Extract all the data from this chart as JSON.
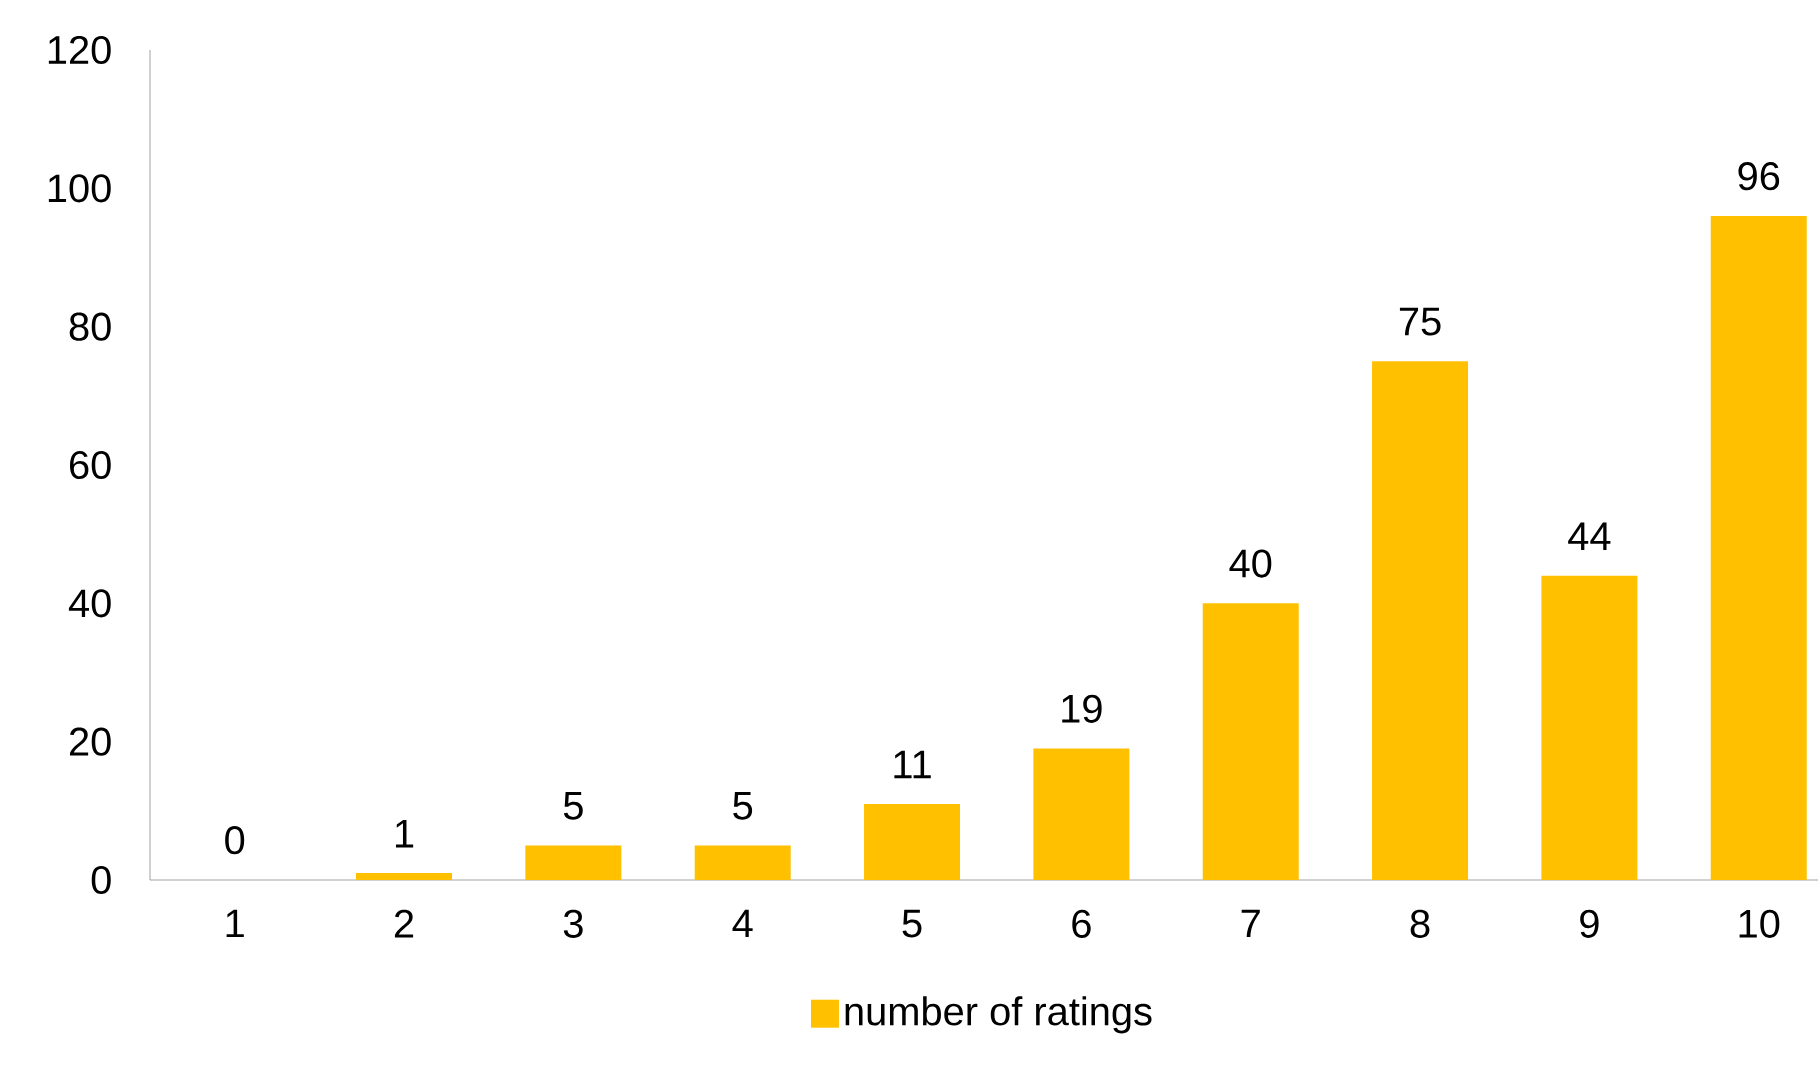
{
  "chart_data": {
    "type": "bar",
    "categories": [
      "1",
      "2",
      "3",
      "4",
      "5",
      "6",
      "7",
      "8",
      "9",
      "10"
    ],
    "series": [
      {
        "name": "number of ratings",
        "color": "#ffc000",
        "values": [
          0,
          1,
          5,
          5,
          11,
          19,
          40,
          75,
          44,
          96
        ]
      }
    ],
    "ylim": [
      0,
      120
    ],
    "yticks": [
      0,
      20,
      40,
      60,
      80,
      100,
      120
    ],
    "data_labels": true,
    "legend": "bottom",
    "grid": false
  }
}
